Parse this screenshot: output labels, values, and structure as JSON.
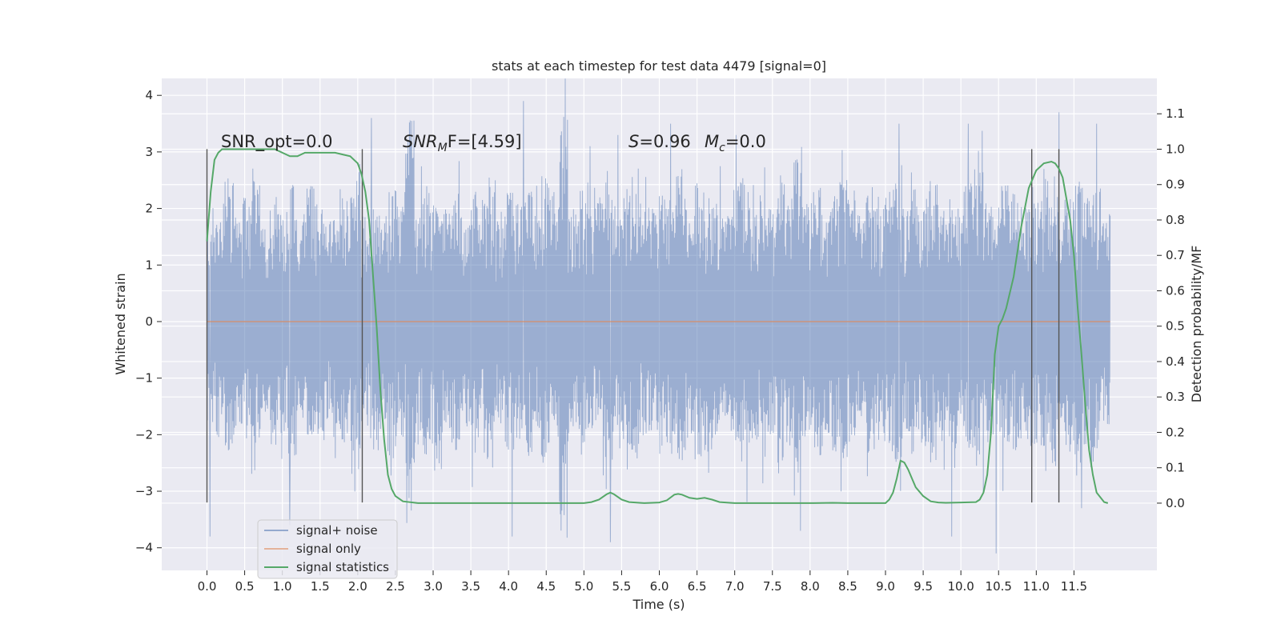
{
  "chart_data": {
    "type": "line",
    "title": "stats at each timestep for test data 4479 [signal=0]",
    "xlabel": "Time (s)",
    "ylabel": "Whitened strain",
    "y2label": "Detection probability/MF",
    "xlim": [
      -0.6,
      12.6
    ],
    "ylim": [
      -4.4,
      4.3
    ],
    "y2lim": [
      -0.19,
      1.2
    ],
    "grid": true,
    "x_ticks": [
      "0.0",
      "0.5",
      "1.0",
      "1.5",
      "2.0",
      "2.5",
      "3.0",
      "3.5",
      "4.0",
      "4.5",
      "5.0",
      "5.5",
      "6.0",
      "6.5",
      "7.0",
      "7.5",
      "8.0",
      "8.5",
      "9.0",
      "9.5",
      "10.0",
      "10.5",
      "11.0",
      "11.5"
    ],
    "y_ticks": [
      "4",
      "3",
      "2",
      "1",
      "0",
      "−1",
      "−2",
      "−3",
      "−4"
    ],
    "y2_ticks": [
      "1.1",
      "1.0",
      "0.9",
      "0.8",
      "0.7",
      "0.6",
      "0.5",
      "0.4",
      "0.3",
      "0.2",
      "0.1",
      "0.0"
    ],
    "annotations": {
      "snr_opt": "SNR_opt=0.0",
      "snr_mf_main": "SNR",
      "snr_mf_sub": "M",
      "snr_mf_rest": "F=[4.59]",
      "s_main": "S",
      "s_rest": "=0.96",
      "mc_main": "M",
      "mc_sub": "c",
      "mc_rest": "=0.0"
    },
    "vertical_markers": [
      0.0,
      2.06,
      10.94,
      11.3
    ],
    "legend": {
      "placement": "lower-left",
      "entries": [
        "signal+ noise",
        "signal only",
        "signal statistics"
      ]
    },
    "series": [
      {
        "name": "signal+ noise",
        "color": "#4c72b0",
        "x_range": [
          0.0,
          11.98
        ],
        "envelope": [
          1.8,
          2.1,
          2.6,
          1.9,
          2.2,
          2.5,
          1.7,
          2.3,
          2.0,
          2.6,
          1.9,
          2.4,
          2.1,
          1.8,
          2.5,
          2.2,
          2.9,
          2.0,
          2.3,
          1.9,
          2.4,
          2.1,
          3.6,
          2.2,
          2.4,
          2.7,
          2.0,
          2.3,
          1.9,
          2.5,
          2.2,
          2.6,
          1.8,
          2.3,
          2.1,
          2.4,
          2.0,
          2.6,
          2.3,
          3.9,
          2.1,
          2.4,
          2.0,
          2.2,
          2.5,
          1.9,
          2.3,
          2.6,
          2.1,
          2.0,
          2.4,
          2.2,
          2.8,
          2.0,
          2.5,
          2.3,
          2.2,
          1.9,
          2.4,
          2.6,
          2.1,
          2.3,
          2.0,
          2.5,
          2.2,
          3.1,
          2.1,
          2.4,
          2.0,
          2.3,
          2.5,
          2.2,
          1.9,
          2.4,
          2.1,
          2.3,
          2.6,
          2.0,
          2.4,
          2.2,
          2.5,
          2.1,
          2.3,
          1.9,
          2.4,
          2.7,
          2.2,
          2.0,
          2.5,
          2.3,
          2.1,
          2.4,
          2.2,
          2.6,
          2.0,
          2.3,
          2.5,
          2.2,
          2.4,
          1.9
        ],
        "peaks_up": [
          [
            2.18,
            3.6
          ],
          [
            4.2,
            3.9
          ],
          [
            5.08,
            3.1
          ],
          [
            5.45,
            3.3
          ],
          [
            6.15,
            3.5
          ],
          [
            7.02,
            3.3
          ],
          [
            9.18,
            3.5
          ],
          [
            10.1,
            3.5
          ],
          [
            11.3,
            3.7
          ],
          [
            11.8,
            3.5
          ]
        ],
        "peaks_down": [
          [
            0.04,
            -3.8
          ],
          [
            1.1,
            -3.6
          ],
          [
            4.05,
            -3.8
          ],
          [
            5.35,
            -3.9
          ],
          [
            10.47,
            -4.1
          ],
          [
            9.88,
            -3.8
          ],
          [
            11.6,
            -3.3
          ]
        ]
      },
      {
        "name": "signal only",
        "color": "#dd8452",
        "x": [
          0.0,
          11.98
        ],
        "y": [
          0.0,
          0.0
        ]
      },
      {
        "name": "signal statistics",
        "color": "#55a868",
        "axis": "right",
        "x": [
          0.0,
          0.05,
          0.1,
          0.15,
          0.2,
          0.3,
          0.5,
          0.7,
          0.9,
          1.0,
          1.1,
          1.2,
          1.3,
          1.4,
          1.5,
          1.6,
          1.7,
          1.8,
          1.9,
          2.0,
          2.05,
          2.1,
          2.15,
          2.2,
          2.25,
          2.3,
          2.35,
          2.4,
          2.45,
          2.5,
          2.6,
          2.8,
          3.0,
          3.5,
          4.0,
          4.5,
          5.0,
          5.1,
          5.2,
          5.3,
          5.35,
          5.4,
          5.5,
          5.6,
          5.8,
          6.0,
          6.1,
          6.2,
          6.25,
          6.3,
          6.4,
          6.5,
          6.6,
          6.7,
          6.8,
          7.0,
          7.5,
          8.0,
          8.3,
          8.5,
          9.0,
          9.05,
          9.1,
          9.15,
          9.2,
          9.25,
          9.3,
          9.35,
          9.4,
          9.5,
          9.6,
          9.7,
          9.8,
          10.0,
          10.2,
          10.25,
          10.3,
          10.35,
          10.4,
          10.45,
          10.5,
          10.55,
          10.6,
          10.7,
          10.8,
          10.9,
          11.0,
          11.1,
          11.2,
          11.25,
          11.3,
          11.35,
          11.4,
          11.45,
          11.5,
          11.55,
          11.6,
          11.65,
          11.7,
          11.75,
          11.8,
          11.9,
          11.95
        ],
        "y": [
          0.74,
          0.88,
          0.97,
          0.99,
          1.0,
          1.0,
          1.0,
          1.0,
          1.0,
          0.99,
          0.98,
          0.98,
          0.99,
          0.99,
          0.99,
          0.99,
          0.99,
          0.985,
          0.98,
          0.96,
          0.93,
          0.88,
          0.8,
          0.65,
          0.5,
          0.32,
          0.18,
          0.08,
          0.04,
          0.02,
          0.005,
          0.0,
          0.0,
          0.0,
          0.0,
          0.0,
          0.0,
          0.003,
          0.01,
          0.025,
          0.03,
          0.025,
          0.01,
          0.003,
          0.0,
          0.002,
          0.008,
          0.024,
          0.026,
          0.024,
          0.015,
          0.012,
          0.015,
          0.01,
          0.003,
          0.0,
          0.0,
          0.0,
          0.001,
          0.0,
          0.0,
          0.01,
          0.03,
          0.07,
          0.12,
          0.115,
          0.095,
          0.07,
          0.045,
          0.02,
          0.005,
          0.002,
          0.001,
          0.002,
          0.003,
          0.01,
          0.03,
          0.08,
          0.2,
          0.42,
          0.5,
          0.52,
          0.55,
          0.64,
          0.78,
          0.89,
          0.94,
          0.96,
          0.965,
          0.96,
          0.945,
          0.92,
          0.86,
          0.8,
          0.7,
          0.55,
          0.42,
          0.28,
          0.15,
          0.08,
          0.03,
          0.003,
          0.0
        ]
      }
    ]
  },
  "legend_colors": {
    "noise": "#4c72b0",
    "signal": "#dd8452",
    "stats": "#55a868"
  },
  "marker_color": "#555555",
  "plot_background": "#eaeaf2"
}
